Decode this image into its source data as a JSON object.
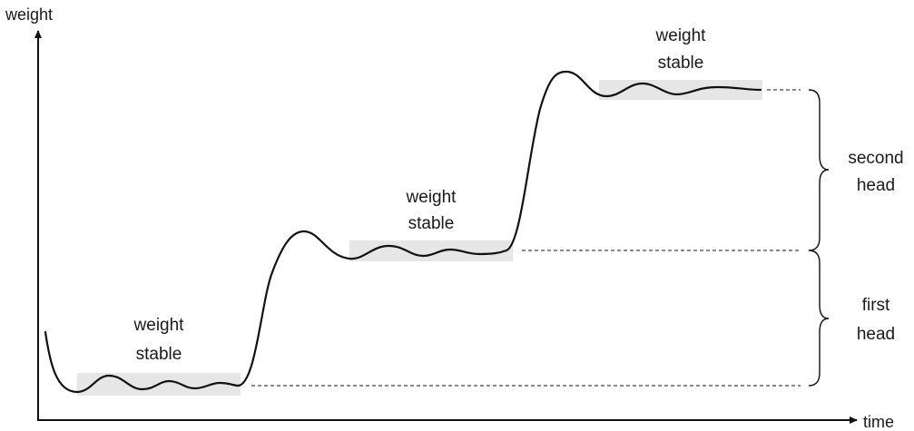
{
  "axes": {
    "y_label": "weight",
    "x_label": "time"
  },
  "stable_labels": [
    {
      "line1": "weight",
      "line2": "stable"
    },
    {
      "line1": "weight",
      "line2": "stable"
    },
    {
      "line1": "weight",
      "line2": "stable"
    }
  ],
  "head_labels": {
    "second": {
      "line1": "second",
      "line2": "head"
    },
    "first": {
      "line1": "first",
      "line2": "head"
    }
  },
  "colors": {
    "curve": "#111111",
    "band": "#e6e6e6"
  }
}
